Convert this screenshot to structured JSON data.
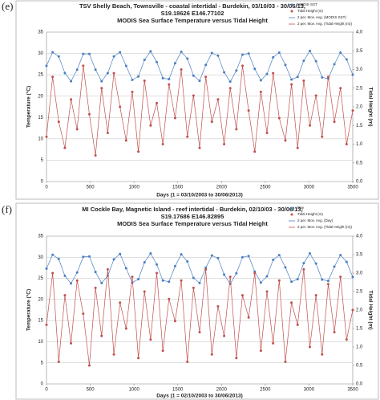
{
  "chart_data": [
    {
      "type": "scatter",
      "panel": "(e)",
      "title": [
        "TSV Shelly Beach, Townsville - coastal intertidal - Burdekin, 03/10/03 - 30/06/13,",
        "S19.18626 E146.77102",
        "MODIS Sea Surface Temperature versus Tidal Height"
      ],
      "x_label": "Days (1 = 03/10/2003 to 30/06/2013)",
      "y_label": "Temperature (°C)",
      "y2_label": "Tidal Height (m)",
      "x": [
        0,
        70,
        140,
        210,
        280,
        350,
        420,
        490,
        560,
        630,
        700,
        770,
        840,
        910,
        980,
        1050,
        1120,
        1190,
        1260,
        1330,
        1400,
        1470,
        1540,
        1610,
        1680,
        1750,
        1820,
        1890,
        1960,
        2030,
        2100,
        2170,
        2240,
        2310,
        2380,
        2450,
        2520,
        2590,
        2660,
        2730,
        2800,
        2870,
        2940,
        3010,
        3080,
        3150,
        3220,
        3290,
        3360,
        3430,
        3500
      ],
      "series": [
        {
          "name": "MODIS SST",
          "color": "#4a7fc1",
          "values": [
            27.1,
            30.3,
            29.3,
            25.4,
            23.5,
            26.2,
            29.9,
            29.9,
            26.2,
            23.5,
            25.4,
            29.3,
            30.3,
            27.1,
            23.8,
            24.6,
            28.5,
            30.5,
            28.0,
            24.2,
            24.0,
            27.7,
            30.4,
            28.8,
            24.8,
            23.6,
            27.3,
            30.1,
            29.5,
            25.6,
            23.4,
            26.0,
            29.7,
            30.0,
            26.4,
            23.7,
            25.2,
            29.1,
            30.2,
            27.3,
            23.9,
            24.5,
            28.3,
            30.6,
            28.2,
            24.4,
            24.1,
            27.5,
            30.2,
            28.6,
            25.0
          ]
        },
        {
          "name": "Tidal Height (m)",
          "color": "#c0504d",
          "axis": "y2",
          "values": [
            1.2,
            2.8,
            1.6,
            0.9,
            2.2,
            1.4,
            3.1,
            1.8,
            0.7,
            2.5,
            1.3,
            2.9,
            2.0,
            1.1,
            2.4,
            0.8,
            2.7,
            1.5,
            2.1,
            1.0,
            2.6,
            1.7,
            3.0,
            1.2,
            2.3,
            0.9,
            2.8,
            1.6,
            2.2,
            1.0,
            2.5,
            1.4,
            3.1,
            1.9,
            0.8,
            2.4,
            1.3,
            2.9,
            1.7,
            1.1,
            2.6,
            0.9,
            2.7,
            1.5,
            2.3,
            1.2,
            2.8,
            1.6,
            2.5,
            1.0,
            1.9
          ]
        }
      ],
      "trendlines": [
        {
          "name": "2 per. Mov. Avg. (MODIS SST)",
          "color": "#4a7fc1"
        },
        {
          "name": "2 per. Mov. Avg. (Tidal Height (m))",
          "color": "#c0504d"
        }
      ],
      "xlim": [
        0,
        3500
      ],
      "xticks": [
        0,
        500,
        1000,
        1500,
        2000,
        2500,
        3000,
        3500
      ],
      "ylim": [
        0,
        35
      ],
      "yticks": [
        0,
        5,
        10,
        15,
        20,
        25,
        30,
        35
      ],
      "y2lim": [
        0,
        4
      ],
      "y2ticks": [
        {
          "value": 0,
          "label": "0.0"
        },
        {
          "value": 0.5,
          "label": "0.5"
        },
        {
          "value": 1,
          "label": "1.0"
        },
        {
          "value": 1.5,
          "label": "1.5"
        },
        {
          "value": 2,
          "label": "2.0"
        },
        {
          "value": 2.5,
          "label": "2.5"
        },
        {
          "value": 3,
          "label": "3.0"
        },
        {
          "value": 3.5,
          "label": "3.5"
        },
        {
          "value": 4,
          "label": "4.0"
        }
      ],
      "grid": true,
      "legend": "top-right"
    },
    {
      "type": "scatter",
      "panel": "(f)",
      "title": [
        "MI Cockle Bay, Magnetic Island - reef intertidal - Burdekin, 02/10/03 - 30/06/13,",
        "S19.17686 E146.82895",
        "MODIS Sea Surface Temperature versus Tidal Height"
      ],
      "x_label": "Days (1 = 02/10/2003 to 30/06/2013)",
      "y_label": "Temperature (°C)",
      "y2_label": "Tidal Height (m)",
      "x": [
        0,
        70,
        140,
        210,
        280,
        350,
        420,
        490,
        560,
        630,
        700,
        770,
        840,
        910,
        980,
        1050,
        1120,
        1190,
        1260,
        1330,
        1400,
        1470,
        1540,
        1610,
        1680,
        1750,
        1820,
        1890,
        1960,
        2030,
        2100,
        2170,
        2240,
        2310,
        2380,
        2450,
        2520,
        2590,
        2660,
        2730,
        2800,
        2870,
        2940,
        3010,
        3080,
        3150,
        3220,
        3290,
        3360,
        3430,
        3500
      ],
      "series": [
        {
          "name": "Day",
          "color": "#4a7fc1",
          "values": [
            27.3,
            30.6,
            29.6,
            25.6,
            23.8,
            26.4,
            30.1,
            30.2,
            26.5,
            23.9,
            25.6,
            29.5,
            30.8,
            27.4,
            24.0,
            24.8,
            28.8,
            30.9,
            28.3,
            24.5,
            24.2,
            27.9,
            30.7,
            29.0,
            25.1,
            23.9,
            27.5,
            30.4,
            29.8,
            25.9,
            23.7,
            26.2,
            30.0,
            30.3,
            26.6,
            24.0,
            25.5,
            29.4,
            30.5,
            27.6,
            24.2,
            24.8,
            28.6,
            30.9,
            28.5,
            24.7,
            24.4,
            27.8,
            30.5,
            28.9,
            25.3
          ]
        },
        {
          "name": "Tidal Height (m)",
          "color": "#c0504d",
          "axis": "y2",
          "values": [
            1.6,
            3.0,
            0.6,
            2.4,
            1.1,
            2.8,
            1.9,
            0.5,
            2.6,
            1.3,
            3.1,
            0.8,
            2.2,
            1.5,
            2.9,
            0.7,
            2.5,
            1.2,
            3.0,
            0.9,
            2.3,
            1.7,
            2.8,
            0.6,
            2.6,
            1.4,
            3.1,
            0.8,
            2.1,
            1.3,
            2.9,
            0.7,
            2.4,
            1.8,
            3.0,
            0.9,
            2.5,
            1.1,
            2.8,
            0.6,
            2.2,
            1.6,
            3.1,
            1.0,
            2.4,
            0.8,
            2.7,
            1.4,
            2.9,
            1.2,
            2.0
          ]
        }
      ],
      "trendlines": [
        {
          "name": "2 per. Mov. Avg. (Day)",
          "color": "#4a7fc1"
        },
        {
          "name": "2 per. Mov. Avg. (Tidal Height (m))",
          "color": "#c0504d"
        }
      ],
      "xlim": [
        0,
        3500
      ],
      "xticks": [
        0,
        500,
        1000,
        1500,
        2000,
        2500,
        3000,
        3500
      ],
      "ylim": [
        0,
        35
      ],
      "yticks": [
        0,
        5,
        10,
        15,
        20,
        25,
        30,
        35
      ],
      "y2lim": [
        0,
        4
      ],
      "y2ticks": [
        {
          "value": 0,
          "label": "0.0"
        },
        {
          "value": 0.5,
          "label": "0.5"
        },
        {
          "value": 1,
          "label": "1.0"
        },
        {
          "value": 1.5,
          "label": "1.5"
        },
        {
          "value": 2,
          "label": "2.0"
        },
        {
          "value": 2.5,
          "label": "2.5"
        },
        {
          "value": 3,
          "label": "3.0"
        },
        {
          "value": 3.5,
          "label": "3.5"
        },
        {
          "value": 4,
          "label": "4.0"
        }
      ],
      "grid": true,
      "legend": "top-right"
    }
  ]
}
